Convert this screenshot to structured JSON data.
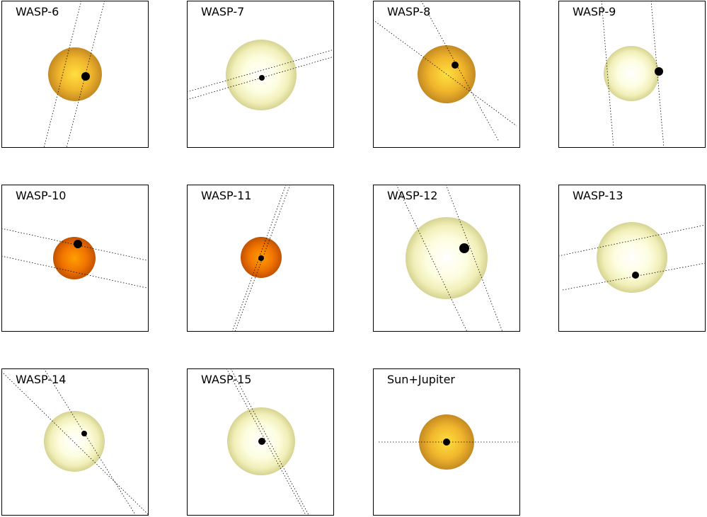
{
  "panels": [
    {
      "label": "WASP-6"
    },
    {
      "label": "WASP-7"
    },
    {
      "label": "WASP-8"
    },
    {
      "label": "WASP-9"
    },
    {
      "label": "WASP-10"
    },
    {
      "label": "WASP-11"
    },
    {
      "label": "WASP-12"
    },
    {
      "label": "WASP-13"
    },
    {
      "label": "WASP-14"
    },
    {
      "label": "WASP-15"
    },
    {
      "label": "Sun+Jupiter"
    }
  ]
}
